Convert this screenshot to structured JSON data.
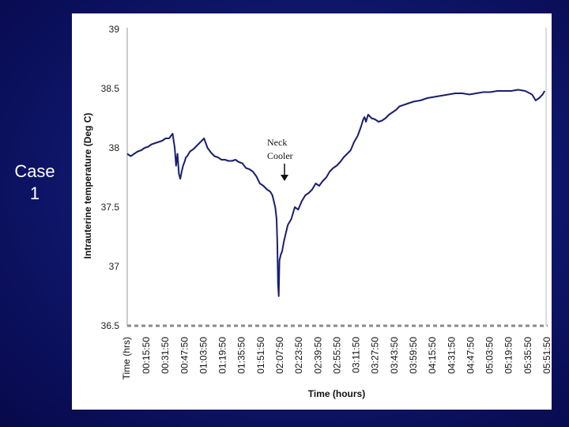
{
  "slide": {
    "case_label": "Case\n1"
  },
  "chart_data": {
    "type": "line",
    "title": "",
    "ylabel": "Intrauterine temperature (Deg C)",
    "xlabel": "Time (hours)",
    "x_axis_header": "Time (hrs)",
    "ylim": [
      36.5,
      39
    ],
    "yticks": [
      "39",
      "38.5",
      "38",
      "37.5",
      "37",
      "36.5"
    ],
    "ytick_values": [
      39,
      38.5,
      38,
      37.5,
      37,
      36.5
    ],
    "categories": [
      "00:15:50",
      "00:31:50",
      "00:47:50",
      "01:03:50",
      "01:19:50",
      "01:35:50",
      "01:51:50",
      "02:07:50",
      "02:23:50",
      "02:39:50",
      "02:55:50",
      "03:11:50",
      "03:27:50",
      "03:43:50",
      "03:59:50",
      "04:15:50",
      "04:31:50",
      "04:47:50",
      "05:03:50",
      "05:19:50",
      "05:35:50",
      "05:51:50"
    ],
    "grid": false,
    "line_color": "#1a1f6e",
    "annotation": {
      "text_line1": "Neck",
      "text_line2": "Cooler",
      "x_hours": 2.11,
      "y": 37.7
    },
    "series": [
      {
        "x": [
          0.0,
          0.05,
          0.1,
          0.15,
          0.2,
          0.25,
          0.3,
          0.35,
          0.4,
          0.45,
          0.5,
          0.55,
          0.6,
          0.65,
          0.68,
          0.7,
          0.72,
          0.74,
          0.76,
          0.78,
          0.8,
          0.82,
          0.84,
          0.86,
          0.88,
          0.9,
          0.95,
          1.0,
          1.05,
          1.1,
          1.15,
          1.2,
          1.25,
          1.3,
          1.35,
          1.4,
          1.45,
          1.5,
          1.55,
          1.6,
          1.65,
          1.7,
          1.75,
          1.8,
          1.85,
          1.9,
          1.95,
          2.0,
          2.05,
          2.08,
          2.1,
          2.12,
          2.14,
          2.15,
          2.16,
          2.17,
          2.18,
          2.2,
          2.22,
          2.24,
          2.26,
          2.28,
          2.3,
          2.35,
          2.4,
          2.45,
          2.5,
          2.55,
          2.6,
          2.65,
          2.7,
          2.75,
          2.8,
          2.85,
          2.9,
          2.95,
          3.0,
          3.05,
          3.1,
          3.15,
          3.2,
          3.25,
          3.3,
          3.35,
          3.38,
          3.4,
          3.42,
          3.45,
          3.5,
          3.55,
          3.6,
          3.65,
          3.7,
          3.75,
          3.8,
          3.85,
          3.9,
          4.0,
          4.1,
          4.2,
          4.3,
          4.4,
          4.5,
          4.6,
          4.7,
          4.8,
          4.9,
          5.0,
          5.1,
          5.2,
          5.3,
          5.4,
          5.5,
          5.6,
          5.7,
          5.8,
          5.85,
          5.9,
          5.95,
          5.98
        ],
        "y": [
          37.95,
          37.93,
          37.95,
          37.97,
          37.98,
          38.0,
          38.01,
          38.03,
          38.04,
          38.05,
          38.06,
          38.08,
          38.08,
          38.12,
          38.0,
          37.85,
          37.95,
          37.78,
          37.74,
          37.8,
          37.85,
          37.88,
          37.92,
          37.93,
          37.95,
          37.97,
          37.99,
          38.02,
          38.05,
          38.08,
          38.0,
          37.96,
          37.93,
          37.92,
          37.9,
          37.9,
          37.89,
          37.89,
          37.9,
          37.88,
          37.87,
          37.83,
          37.82,
          37.8,
          37.76,
          37.7,
          37.68,
          37.65,
          37.63,
          37.6,
          37.55,
          37.5,
          37.4,
          37.2,
          36.85,
          36.75,
          37.05,
          37.1,
          37.13,
          37.2,
          37.25,
          37.3,
          37.35,
          37.4,
          37.5,
          37.48,
          37.55,
          37.6,
          37.62,
          37.65,
          37.7,
          37.68,
          37.72,
          37.75,
          37.8,
          37.83,
          37.85,
          37.88,
          37.92,
          37.95,
          37.98,
          38.05,
          38.1,
          38.18,
          38.24,
          38.26,
          38.22,
          38.28,
          38.25,
          38.24,
          38.22,
          38.23,
          38.25,
          38.28,
          38.3,
          38.32,
          38.35,
          38.37,
          38.39,
          38.4,
          38.42,
          38.43,
          38.44,
          38.45,
          38.46,
          38.46,
          38.45,
          38.46,
          38.47,
          38.47,
          38.48,
          38.48,
          38.48,
          38.49,
          38.48,
          38.45,
          38.4,
          38.42,
          38.45,
          38.48
        ]
      }
    ]
  }
}
